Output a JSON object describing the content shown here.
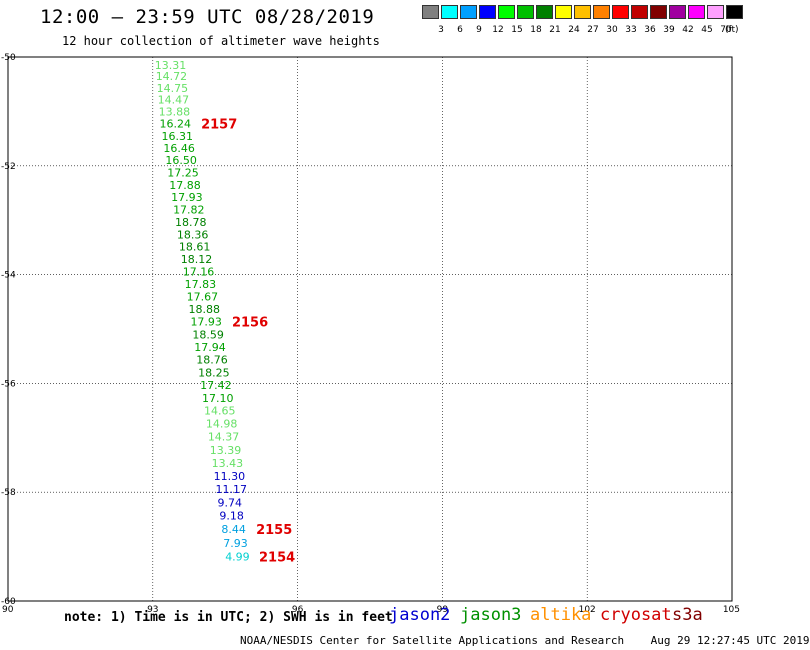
{
  "header": {
    "title": "12:00 – 23:59 UTC 08/28/2019",
    "subtitle": "12 hour collection of altimeter wave heights"
  },
  "colorbar": {
    "labels": [
      "3",
      "6",
      "9",
      "12",
      "15",
      "18",
      "21",
      "24",
      "27",
      "30",
      "33",
      "36",
      "39",
      "42",
      "45",
      "70"
    ],
    "unit": "(ft)",
    "colors": [
      "#808080",
      "#00ffff",
      "#00a0ff",
      "#0000ff",
      "#00ff00",
      "#00c000",
      "#008000",
      "#ffff00",
      "#ffc000",
      "#ff8000",
      "#ff0000",
      "#c00000",
      "#800000",
      "#a000a0",
      "#ff00ff",
      "#ffa0ff",
      "#000000"
    ]
  },
  "chart_data": {
    "type": "scatter",
    "xlim": [
      90,
      105
    ],
    "ylim": [
      -60,
      -50
    ],
    "x_ticks": [
      "90",
      "93",
      "96",
      "99",
      "102",
      "105"
    ],
    "y_ticks": [
      "-50",
      "-52",
      "-54",
      "-56",
      "-58",
      "-60"
    ],
    "grid": true,
    "points": [
      {
        "x": 93.04,
        "y": -50.15,
        "value": "13.31",
        "color": "#66e066"
      },
      {
        "x": 93.06,
        "y": -50.35,
        "value": "14.72",
        "color": "#66e066"
      },
      {
        "x": 93.08,
        "y": -50.57,
        "value": "14.75",
        "color": "#66e066"
      },
      {
        "x": 93.1,
        "y": -50.78,
        "value": "14.47",
        "color": "#66e066"
      },
      {
        "x": 93.12,
        "y": -51.0,
        "value": "13.88",
        "color": "#66e066"
      },
      {
        "x": 93.14,
        "y": -51.22,
        "value": "16.24",
        "color": "#00a000"
      },
      {
        "x": 93.18,
        "y": -51.45,
        "value": "16.31",
        "color": "#00a000"
      },
      {
        "x": 93.22,
        "y": -51.67,
        "value": "16.46",
        "color": "#00a000"
      },
      {
        "x": 93.26,
        "y": -51.89,
        "value": "16.50",
        "color": "#00a000"
      },
      {
        "x": 93.3,
        "y": -52.12,
        "value": "17.25",
        "color": "#00a000"
      },
      {
        "x": 93.34,
        "y": -52.35,
        "value": "17.88",
        "color": "#00a000"
      },
      {
        "x": 93.38,
        "y": -52.57,
        "value": "17.93",
        "color": "#00a000"
      },
      {
        "x": 93.42,
        "y": -52.8,
        "value": "17.82",
        "color": "#00a000"
      },
      {
        "x": 93.46,
        "y": -53.03,
        "value": "18.78",
        "color": "#008000"
      },
      {
        "x": 93.5,
        "y": -53.26,
        "value": "18.36",
        "color": "#008000"
      },
      {
        "x": 93.54,
        "y": -53.48,
        "value": "18.61",
        "color": "#008000"
      },
      {
        "x": 93.58,
        "y": -53.71,
        "value": "18.12",
        "color": "#008000"
      },
      {
        "x": 93.62,
        "y": -53.94,
        "value": "17.16",
        "color": "#00a000"
      },
      {
        "x": 93.66,
        "y": -54.17,
        "value": "17.83",
        "color": "#00a000"
      },
      {
        "x": 93.7,
        "y": -54.4,
        "value": "17.67",
        "color": "#00a000"
      },
      {
        "x": 93.74,
        "y": -54.63,
        "value": "18.88",
        "color": "#008000"
      },
      {
        "x": 93.78,
        "y": -54.86,
        "value": "17.93",
        "color": "#00a000"
      },
      {
        "x": 93.82,
        "y": -55.1,
        "value": "18.59",
        "color": "#008000"
      },
      {
        "x": 93.86,
        "y": -55.33,
        "value": "17.94",
        "color": "#00a000"
      },
      {
        "x": 93.9,
        "y": -55.56,
        "value": "18.76",
        "color": "#008000"
      },
      {
        "x": 93.94,
        "y": -55.8,
        "value": "18.25",
        "color": "#008000"
      },
      {
        "x": 93.98,
        "y": -56.03,
        "value": "17.42",
        "color": "#00a000"
      },
      {
        "x": 94.02,
        "y": -56.27,
        "value": "17.10",
        "color": "#00a000"
      },
      {
        "x": 94.06,
        "y": -56.5,
        "value": "14.65",
        "color": "#66e066"
      },
      {
        "x": 94.1,
        "y": -56.74,
        "value": "14.98",
        "color": "#66e066"
      },
      {
        "x": 94.14,
        "y": -56.98,
        "value": "14.37",
        "color": "#66e066"
      },
      {
        "x": 94.18,
        "y": -57.22,
        "value": "13.39",
        "color": "#66e066"
      },
      {
        "x": 94.22,
        "y": -57.46,
        "value": "13.43",
        "color": "#66e066"
      },
      {
        "x": 94.26,
        "y": -57.7,
        "value": "11.30",
        "color": "#0000c0"
      },
      {
        "x": 94.3,
        "y": -57.94,
        "value": "11.17",
        "color": "#0000c0"
      },
      {
        "x": 94.34,
        "y": -58.19,
        "value": "9.74",
        "color": "#0000c0"
      },
      {
        "x": 94.38,
        "y": -58.43,
        "value": "9.18",
        "color": "#0000c0"
      },
      {
        "x": 94.42,
        "y": -58.68,
        "value": "8.44",
        "color": "#00a0e0"
      },
      {
        "x": 94.46,
        "y": -58.93,
        "value": "7.93",
        "color": "#00a0e0"
      },
      {
        "x": 94.5,
        "y": -59.18,
        "value": "4.99",
        "color": "#00d0d0"
      }
    ],
    "annotations": [
      {
        "x": 94.0,
        "y": -51.22,
        "text": "2157"
      },
      {
        "x": 94.64,
        "y": -54.86,
        "text": "2156"
      },
      {
        "x": 95.14,
        "y": -58.68,
        "text": "2155"
      },
      {
        "x": 95.2,
        "y": -59.18,
        "text": "2154"
      }
    ]
  },
  "footer": {
    "note": "note: 1) Time is in UTC; 2) SWH is in feet",
    "satellites": [
      {
        "name": "jason2",
        "color": "#0000d0"
      },
      {
        "name": "jason3",
        "color": "#009000"
      },
      {
        "name": "altika",
        "color": "#ff9000"
      },
      {
        "name": "cryosat",
        "color": "#d00000"
      },
      {
        "name": "s3a",
        "color": "#800000"
      }
    ],
    "credit": "NOAA/NESDIS Center for Satellite Applications and Research    Aug 29 12:27:45 UTC 2019"
  }
}
